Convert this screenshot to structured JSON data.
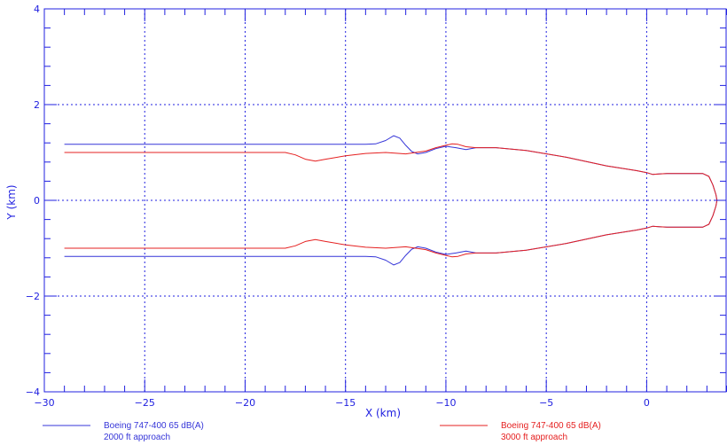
{
  "chart_data": {
    "type": "line",
    "title": "",
    "xlabel": "X (km)",
    "ylabel": "Y (km)",
    "xlim": [
      -30,
      4
    ],
    "ylim": [
      -4,
      4
    ],
    "grid": true,
    "x_tick_labels": [
      "−30",
      "−25",
      "−20",
      "−15",
      "−10",
      "−5",
      "0"
    ],
    "y_tick_labels": [
      "−4",
      "−2",
      "0",
      "2",
      "4"
    ],
    "axis_color": "#2020e0",
    "series": [
      {
        "name": "Boeing 747-400 65 dB(A)",
        "label_line2": "2000 ft approach",
        "color": "#3535d8",
        "x": [
          -29,
          -20,
          -16,
          -14.0,
          -13.5,
          -13.0,
          -12.6,
          -12.3,
          -12.0,
          -11.7,
          -11.4,
          -11.0,
          -10.5,
          -10.0,
          -9.5,
          -9.0,
          -8.5,
          -7.5,
          -6.0,
          -4.0,
          -2.0,
          -0.5,
          0.0,
          0.3,
          0.6,
          1.0,
          2.0,
          2.8,
          3.1,
          3.3,
          3.45,
          3.5,
          3.45,
          3.3,
          3.1,
          2.8,
          2.0,
          1.0,
          0.6,
          0.3,
          0.0,
          -0.5,
          -2.0,
          -4.0,
          -6.0,
          -7.5,
          -8.5,
          -9.0,
          -9.5,
          -10.0,
          -10.5,
          -11.0,
          -11.4,
          -11.7,
          -12.0,
          -12.3,
          -12.6,
          -13.0,
          -13.5,
          -14.0,
          -16,
          -20,
          -29
        ],
        "y": [
          1.17,
          1.17,
          1.17,
          1.17,
          1.18,
          1.25,
          1.35,
          1.3,
          1.15,
          1.02,
          0.97,
          1.0,
          1.08,
          1.13,
          1.1,
          1.06,
          1.1,
          1.1,
          1.04,
          0.9,
          0.72,
          0.62,
          0.58,
          0.54,
          0.55,
          0.56,
          0.56,
          0.56,
          0.5,
          0.32,
          0.12,
          0.0,
          -0.12,
          -0.32,
          -0.5,
          -0.56,
          -0.56,
          -0.56,
          -0.55,
          -0.54,
          -0.58,
          -0.62,
          -0.72,
          -0.9,
          -1.04,
          -1.1,
          -1.1,
          -1.06,
          -1.1,
          -1.13,
          -1.08,
          -1.0,
          -0.97,
          -1.02,
          -1.15,
          -1.3,
          -1.35,
          -1.25,
          -1.18,
          -1.17,
          -1.17,
          -1.17,
          -1.17
        ]
      },
      {
        "name": "Boeing 747-400 65 dB(A)",
        "label_line2": "3000 ft approach",
        "color": "#e52020",
        "x": [
          -29,
          -20,
          -18.5,
          -18.0,
          -17.5,
          -17.0,
          -16.5,
          -16.0,
          -15.0,
          -14.0,
          -13.0,
          -12.0,
          -11.5,
          -11.0,
          -10.5,
          -10.0,
          -9.7,
          -9.4,
          -9.0,
          -8.5,
          -7.5,
          -6.0,
          -4.0,
          -2.0,
          -0.5,
          0.0,
          0.3,
          0.6,
          1.0,
          2.0,
          2.8,
          3.1,
          3.3,
          3.45,
          3.5,
          3.45,
          3.3,
          3.1,
          2.8,
          2.0,
          1.0,
          0.6,
          0.3,
          0.0,
          -0.5,
          -2.0,
          -4.0,
          -6.0,
          -7.5,
          -8.5,
          -9.0,
          -9.4,
          -9.7,
          -10.0,
          -10.5,
          -11.0,
          -11.5,
          -12.0,
          -13.0,
          -14.0,
          -15.0,
          -16.0,
          -16.5,
          -17.0,
          -17.5,
          -18.0,
          -18.5,
          -20,
          -29
        ],
        "y": [
          1.0,
          1.0,
          1.0,
          1.0,
          0.95,
          0.86,
          0.82,
          0.86,
          0.93,
          0.98,
          1.0,
          0.97,
          1.0,
          1.03,
          1.1,
          1.15,
          1.18,
          1.17,
          1.12,
          1.1,
          1.1,
          1.04,
          0.9,
          0.72,
          0.62,
          0.58,
          0.54,
          0.55,
          0.56,
          0.56,
          0.56,
          0.5,
          0.32,
          0.12,
          0.0,
          -0.12,
          -0.32,
          -0.5,
          -0.56,
          -0.56,
          -0.56,
          -0.55,
          -0.54,
          -0.58,
          -0.62,
          -0.72,
          -0.9,
          -1.04,
          -1.1,
          -1.1,
          -1.12,
          -1.17,
          -1.18,
          -1.15,
          -1.1,
          -1.03,
          -1.0,
          -0.97,
          -1.0,
          -0.98,
          -0.93,
          -0.86,
          -0.82,
          -0.86,
          -0.95,
          -1.0,
          -1.0,
          -1.0,
          -1.0
        ]
      }
    ]
  }
}
